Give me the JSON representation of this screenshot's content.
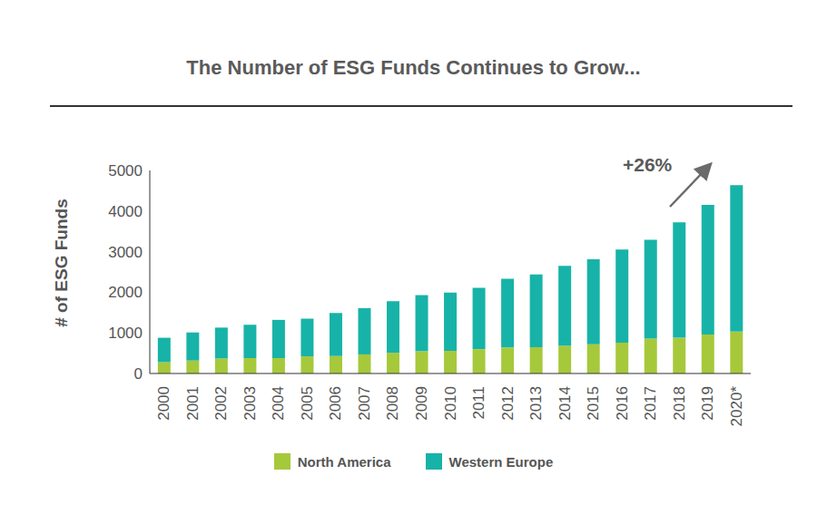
{
  "chart_data": {
    "type": "bar",
    "title": "The Number of ESG Funds Continues to Grow...",
    "y_label": "# of ESG Funds",
    "annotation": "+26%",
    "categories": [
      "2000",
      "2001",
      "2002",
      "2003",
      "2004",
      "2005",
      "2006",
      "2007",
      "2008",
      "2009",
      "2010",
      "2011",
      "2012",
      "2013",
      "2014",
      "2015",
      "2016",
      "2017",
      "2018",
      "2019",
      "2020*"
    ],
    "series": [
      {
        "name": "North America",
        "color": "#a6c93b",
        "values": [
          280,
          320,
          370,
          380,
          380,
          420,
          430,
          470,
          510,
          550,
          560,
          600,
          640,
          650,
          680,
          720,
          760,
          860,
          880,
          960,
          1030
        ]
      },
      {
        "name": "Western Europe",
        "color": "#17b3a8",
        "values": [
          600,
          690,
          760,
          820,
          940,
          930,
          1060,
          1140,
          1270,
          1380,
          1430,
          1510,
          1690,
          1790,
          1970,
          2090,
          2290,
          2430,
          2840,
          3190,
          3610
        ]
      }
    ],
    "ylim": [
      0,
      5000
    ],
    "yticks": [
      0,
      1000,
      2000,
      3000,
      4000,
      5000
    ],
    "stacked": true,
    "grid": false,
    "legend": "bottom"
  }
}
